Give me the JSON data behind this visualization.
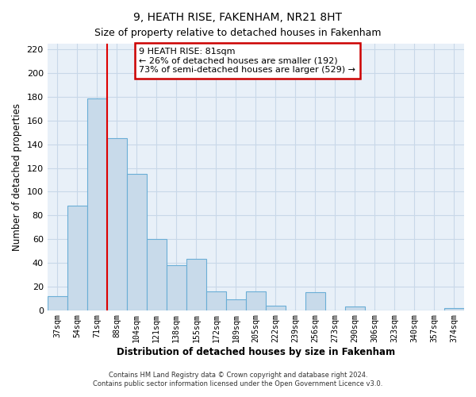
{
  "title": "9, HEATH RISE, FAKENHAM, NR21 8HT",
  "subtitle": "Size of property relative to detached houses in Fakenham",
  "xlabel": "Distribution of detached houses by size in Fakenham",
  "ylabel": "Number of detached properties",
  "footer_line1": "Contains HM Land Registry data © Crown copyright and database right 2024.",
  "footer_line2": "Contains public sector information licensed under the Open Government Licence v3.0.",
  "bar_labels": [
    "37sqm",
    "54sqm",
    "71sqm",
    "88sqm",
    "104sqm",
    "121sqm",
    "138sqm",
    "155sqm",
    "172sqm",
    "189sqm",
    "205sqm",
    "222sqm",
    "239sqm",
    "256sqm",
    "273sqm",
    "290sqm",
    "306sqm",
    "323sqm",
    "340sqm",
    "357sqm",
    "374sqm"
  ],
  "bar_values": [
    12,
    88,
    179,
    145,
    115,
    60,
    38,
    43,
    16,
    9,
    16,
    4,
    0,
    15,
    0,
    3,
    0,
    0,
    0,
    0,
    2
  ],
  "bar_color": "#c8daea",
  "bar_edge_color": "#6aaed6",
  "grid_color": "#c8d8e8",
  "bg_color": "#ffffff",
  "plot_bg_color": "#e8f0f8",
  "vline_color": "#dd0000",
  "annotation_text": "9 HEATH RISE: 81sqm\n← 26% of detached houses are smaller (192)\n73% of semi-detached houses are larger (529) →",
  "annotation_box_color": "white",
  "annotation_box_edge": "#cc0000",
  "ylim": [
    0,
    225
  ],
  "yticks": [
    0,
    20,
    40,
    60,
    80,
    100,
    120,
    140,
    160,
    180,
    200,
    220
  ],
  "vline_bar_idx": 2
}
